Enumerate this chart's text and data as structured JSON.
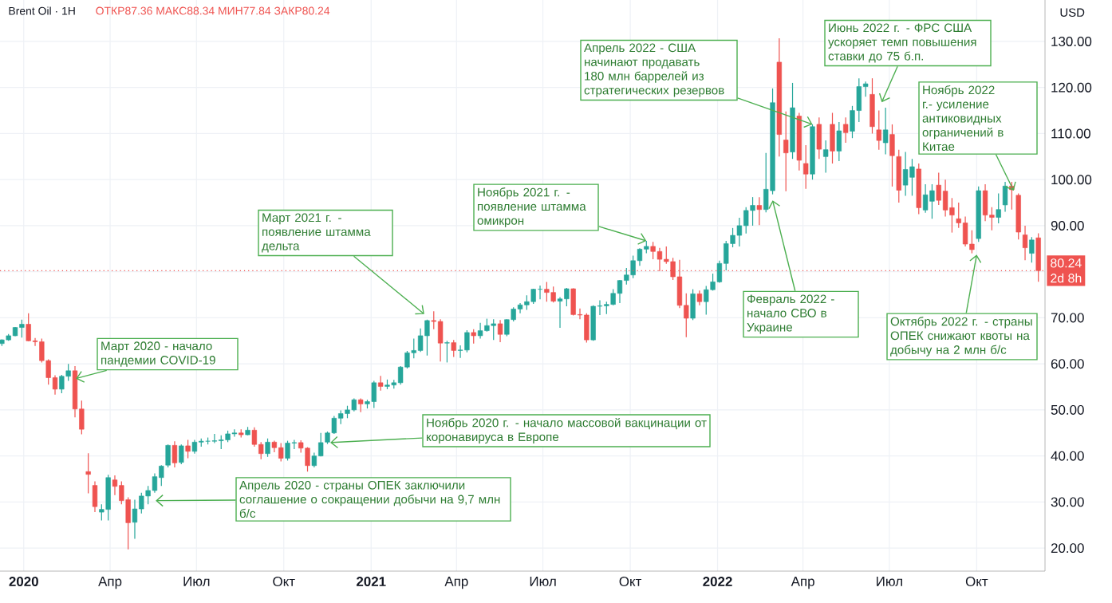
{
  "chart_data": {
    "type": "candlestick",
    "title": "Brent Oil · 1Н",
    "subtitle": "ОТКР87.36 МАКС88.34 МИН77.84 ЗАКР80.24",
    "ylabel": "USD",
    "grid": true,
    "xlim": [
      "2019-12-07",
      "2022-12-12"
    ],
    "ylim": [
      15,
      139
    ],
    "xticks": [
      {
        "value": "2020-01-01",
        "label": "2020"
      },
      {
        "value": "2020-04-01",
        "label": "Апр"
      },
      {
        "value": "2020-07-01",
        "label": "Июл"
      },
      {
        "value": "2020-10-01",
        "label": "Окт"
      },
      {
        "value": "2021-01-01",
        "label": "2021"
      },
      {
        "value": "2021-04-01",
        "label": "Апр"
      },
      {
        "value": "2021-07-01",
        "label": "Июл"
      },
      {
        "value": "2021-10-01",
        "label": "Окт"
      },
      {
        "value": "2022-01-01",
        "label": "2022"
      },
      {
        "value": "2022-04-01",
        "label": "Апр"
      },
      {
        "value": "2022-07-01",
        "label": "Июл"
      },
      {
        "value": "2022-10-01",
        "label": "Окт"
      }
    ],
    "yticks": [
      {
        "value": 20,
        "label": "20.00"
      },
      {
        "value": 30,
        "label": "30.00"
      },
      {
        "value": 40,
        "label": "40.00"
      },
      {
        "value": 50,
        "label": "50.00"
      },
      {
        "value": 60,
        "label": "60.00"
      },
      {
        "value": 70,
        "label": "70.00"
      },
      {
        "value": 80,
        "label": null
      },
      {
        "value": 90,
        "label": "90.00"
      },
      {
        "value": 100,
        "label": "100.00"
      },
      {
        "value": 110,
        "label": "110.00"
      },
      {
        "value": 120,
        "label": "120.00"
      },
      {
        "value": 130,
        "label": "130.00"
      }
    ],
    "ref_lines": [
      {
        "axis": "y",
        "value": 80.24,
        "label": "80.24",
        "color": "#ef5350",
        "line_style": "dotted"
      }
    ],
    "annotations": [
      {
        "text": "Март 2020 - начало пандемии COVID-19",
        "x": "2020-02-25",
        "y": 56.8
      },
      {
        "text": "Апрель 2020 - страны ОПЕК заключили соглашение о сокращении добычи на 9,7 млн б/с",
        "x": "2020-05-19",
        "y": 30.3
      },
      {
        "text": "Ноябрь 2020 г. - начало массовой вакцинации от коронавируса в Европе",
        "x": "2020-11-19",
        "y": 42.9
      },
      {
        "text": "Март 2021 г. - появление штамма дельта",
        "x": "2021-02-26",
        "y": 70.8
      },
      {
        "text": "Ноябрь 2021 г. - появление штамма омикрон",
        "x": "2021-10-18",
        "y": 86.7
      },
      {
        "text": "Апрель 2022 - США начинают продавать 180 млн баррелей из стратегических резервов",
        "x": "2022-04-11",
        "y": 112.0
      },
      {
        "text": "Февраль 2022 - начало СВО в Украине",
        "x": "2022-02-28",
        "y": 95.5
      },
      {
        "text": "Июнь 2022 г. - ФРС США ускоряет темп повышения ставки до 75 б.п.",
        "x": "2022-06-23",
        "y": 116.8
      },
      {
        "text": "Ноябрь 2022 г.- усиление антиковидных ограничений в Китае",
        "x": "2022-11-09",
        "y": 97.6
      },
      {
        "text": "Октябрь 2022 г. - страны ОПЕК снижают квоты на добычу на 2 млн б/с",
        "x": "2022-10-01",
        "y": 83.7
      },
      "2d 8h"
    ],
    "x": [
      "2019-12-09",
      "2019-12-16",
      "2019-12-23",
      "2019-12-30",
      "2020-01-06",
      "2020-01-13",
      "2020-01-20",
      "2020-01-27",
      "2020-02-03",
      "2020-02-10",
      "2020-02-17",
      "2020-02-24",
      "2020-03-02",
      "2020-03-09",
      "2020-03-16",
      "2020-03-23",
      "2020-03-30",
      "2020-04-06",
      "2020-04-13",
      "2020-04-20",
      "2020-04-27",
      "2020-05-04",
      "2020-05-11",
      "2020-05-18",
      "2020-05-25",
      "2020-06-01",
      "2020-06-08",
      "2020-06-15",
      "2020-06-22",
      "2020-06-29",
      "2020-07-06",
      "2020-07-13",
      "2020-07-20",
      "2020-07-27",
      "2020-08-03",
      "2020-08-10",
      "2020-08-17",
      "2020-08-24",
      "2020-08-31",
      "2020-09-07",
      "2020-09-14",
      "2020-09-21",
      "2020-09-28",
      "2020-10-05",
      "2020-10-12",
      "2020-10-19",
      "2020-10-26",
      "2020-11-02",
      "2020-11-09",
      "2020-11-16",
      "2020-11-23",
      "2020-11-30",
      "2020-12-07",
      "2020-12-14",
      "2020-12-21",
      "2020-12-28",
      "2021-01-04",
      "2021-01-11",
      "2021-01-18",
      "2021-01-25",
      "2021-02-01",
      "2021-02-08",
      "2021-02-15",
      "2021-02-22",
      "2021-03-01",
      "2021-03-08",
      "2021-03-15",
      "2021-03-22",
      "2021-03-29",
      "2021-04-05",
      "2021-04-12",
      "2021-04-19",
      "2021-04-26",
      "2021-05-03",
      "2021-05-10",
      "2021-05-17",
      "2021-05-24",
      "2021-05-31",
      "2021-06-07",
      "2021-06-14",
      "2021-06-21",
      "2021-06-28",
      "2021-07-05",
      "2021-07-12",
      "2021-07-19",
      "2021-07-26",
      "2021-08-02",
      "2021-08-09",
      "2021-08-16",
      "2021-08-23",
      "2021-08-30",
      "2021-09-06",
      "2021-09-13",
      "2021-09-20",
      "2021-09-27",
      "2021-10-04",
      "2021-10-11",
      "2021-10-18",
      "2021-10-25",
      "2021-11-01",
      "2021-11-08",
      "2021-11-15",
      "2021-11-22",
      "2021-11-29",
      "2021-12-06",
      "2021-12-13",
      "2021-12-20",
      "2021-12-27",
      "2022-01-03",
      "2022-01-10",
      "2022-01-17",
      "2022-01-24",
      "2022-01-31",
      "2022-02-07",
      "2022-02-14",
      "2022-02-21",
      "2022-02-28",
      "2022-03-07",
      "2022-03-14",
      "2022-03-21",
      "2022-03-28",
      "2022-04-04",
      "2022-04-11",
      "2022-04-18",
      "2022-04-25",
      "2022-05-02",
      "2022-05-09",
      "2022-05-16",
      "2022-05-23",
      "2022-05-30",
      "2022-06-06",
      "2022-06-13",
      "2022-06-20",
      "2022-06-27",
      "2022-07-04",
      "2022-07-11",
      "2022-07-18",
      "2022-07-25",
      "2022-08-01",
      "2022-08-08",
      "2022-08-15",
      "2022-08-22",
      "2022-08-29",
      "2022-09-05",
      "2022-09-12",
      "2022-09-19",
      "2022-09-26",
      "2022-10-03",
      "2022-10-10",
      "2022-10-17",
      "2022-10-24",
      "2022-10-31",
      "2022-11-07",
      "2022-11-14",
      "2022-11-21",
      "2022-11-28",
      "2022-12-05"
    ],
    "ohlc": [
      [
        64.4,
        65.3,
        63.9,
        65.2
      ],
      [
        65.2,
        66.5,
        65.0,
        66.1
      ],
      [
        66.1,
        68.0,
        66.0,
        67.9
      ],
      [
        67.9,
        69.6,
        65.7,
        68.6
      ],
      [
        68.6,
        71.0,
        64.9,
        65.0
      ],
      [
        65.0,
        65.6,
        63.9,
        64.8
      ],
      [
        64.8,
        65.5,
        60.3,
        60.7
      ],
      [
        60.7,
        61.0,
        55.5,
        57.0
      ],
      [
        57.0,
        57.5,
        53.3,
        54.5
      ],
      [
        54.5,
        57.6,
        53.6,
        57.3
      ],
      [
        57.3,
        60.0,
        56.3,
        58.5
      ],
      [
        58.5,
        59.5,
        48.4,
        50.2
      ],
      [
        50.2,
        52.0,
        44.7,
        45.8
      ],
      [
        36.6,
        40.6,
        31.9,
        36.0
      ],
      [
        33.6,
        34.5,
        27.8,
        29.0
      ],
      [
        27.8,
        29.5,
        26.0,
        28.4
      ],
      [
        28.4,
        35.9,
        26.0,
        35.3
      ],
      [
        34.8,
        35.8,
        31.5,
        33.4
      ],
      [
        33.6,
        34.5,
        29.5,
        30.3
      ],
      [
        30.5,
        31.0,
        19.7,
        25.5
      ],
      [
        25.6,
        30.5,
        22.0,
        28.5
      ],
      [
        28.5,
        32.0,
        27.5,
        31.3
      ],
      [
        31.3,
        33.5,
        29.5,
        32.5
      ],
      [
        32.5,
        36.2,
        32.0,
        35.5
      ],
      [
        35.3,
        38.0,
        33.5,
        37.8
      ],
      [
        38.0,
        42.5,
        37.5,
        42.3
      ],
      [
        42.3,
        43.2,
        37.5,
        38.5
      ],
      [
        38.6,
        42.5,
        38.2,
        42.2
      ],
      [
        42.2,
        43.5,
        39.5,
        41.0
      ],
      [
        41.0,
        43.5,
        40.5,
        43.0
      ],
      [
        43.0,
        43.8,
        42.0,
        43.2
      ],
      [
        43.2,
        44.0,
        42.5,
        43.2
      ],
      [
        43.2,
        44.8,
        42.8,
        43.3
      ],
      [
        43.3,
        44.5,
        41.5,
        43.5
      ],
      [
        43.5,
        45.5,
        43.0,
        44.8
      ],
      [
        44.8,
        45.8,
        44.2,
        45.0
      ],
      [
        45.0,
        45.8,
        44.0,
        44.6
      ],
      [
        44.6,
        46.3,
        44.5,
        45.6
      ],
      [
        45.6,
        46.2,
        42.0,
        42.5
      ],
      [
        42.5,
        43.0,
        39.3,
        40.5
      ],
      [
        40.5,
        43.8,
        39.8,
        43.0
      ],
      [
        43.0,
        43.3,
        40.8,
        41.8
      ],
      [
        41.8,
        42.8,
        38.8,
        39.5
      ],
      [
        39.5,
        43.3,
        39.0,
        42.8
      ],
      [
        42.8,
        43.5,
        41.5,
        42.9
      ],
      [
        42.9,
        43.4,
        40.7,
        41.7
      ],
      [
        41.7,
        41.9,
        36.6,
        37.9
      ],
      [
        37.9,
        40.7,
        37.5,
        40.0
      ],
      [
        40.0,
        45.0,
        39.9,
        42.9
      ],
      [
        43.0,
        45.3,
        42.6,
        45.0
      ],
      [
        45.0,
        48.7,
        44.8,
        48.2
      ],
      [
        48.2,
        49.9,
        46.9,
        49.2
      ],
      [
        49.2,
        50.9,
        48.2,
        50.0
      ],
      [
        50.0,
        52.5,
        49.7,
        52.2
      ],
      [
        52.2,
        52.5,
        49.5,
        51.3
      ],
      [
        51.3,
        52.2,
        50.3,
        51.8
      ],
      [
        51.8,
        56.3,
        50.4,
        55.9
      ],
      [
        55.9,
        57.4,
        54.2,
        55.1
      ],
      [
        55.1,
        56.6,
        54.5,
        55.4
      ],
      [
        55.4,
        56.5,
        54.6,
        55.9
      ],
      [
        55.9,
        59.5,
        55.5,
        59.3
      ],
      [
        59.3,
        62.8,
        59.0,
        62.4
      ],
      [
        62.4,
        65.5,
        61.2,
        62.9
      ],
      [
        62.9,
        67.7,
        62.6,
        66.1
      ],
      [
        66.1,
        69.6,
        61.8,
        69.4
      ],
      [
        69.4,
        71.4,
        67.5,
        69.2
      ],
      [
        69.2,
        69.7,
        60.5,
        64.5
      ],
      [
        64.5,
        65.0,
        60.3,
        64.6
      ],
      [
        64.6,
        65.2,
        61.5,
        62.9
      ],
      [
        62.9,
        64.0,
        61.3,
        63.0
      ],
      [
        63.0,
        67.3,
        62.5,
        66.8
      ],
      [
        66.8,
        67.5,
        64.4,
        66.1
      ],
      [
        66.1,
        68.9,
        65.5,
        67.2
      ],
      [
        67.2,
        69.8,
        67.0,
        68.3
      ],
      [
        68.3,
        69.7,
        65.2,
        68.7
      ],
      [
        68.7,
        69.5,
        64.7,
        66.4
      ],
      [
        66.4,
        69.7,
        66.0,
        69.6
      ],
      [
        69.6,
        72.3,
        69.2,
        71.9
      ],
      [
        71.9,
        73.2,
        71.0,
        72.8
      ],
      [
        72.8,
        74.9,
        71.7,
        73.5
      ],
      [
        73.5,
        76.3,
        73.0,
        76.2
      ],
      [
        76.2,
        77.0,
        74.0,
        76.2
      ],
      [
        76.2,
        77.8,
        73.5,
        75.5
      ],
      [
        75.5,
        76.8,
        73.3,
        73.6
      ],
      [
        73.6,
        74.5,
        67.8,
        74.1
      ],
      [
        74.1,
        76.5,
        72.5,
        76.3
      ],
      [
        76.3,
        76.4,
        70.5,
        70.7
      ],
      [
        70.7,
        72.0,
        69.7,
        70.6
      ],
      [
        70.6,
        71.0,
        64.6,
        65.2
      ],
      [
        65.2,
        72.7,
        65.0,
        72.5
      ],
      [
        72.5,
        73.8,
        70.6,
        72.6
      ],
      [
        72.6,
        73.5,
        70.8,
        72.9
      ],
      [
        72.9,
        76.2,
        72.7,
        75.3
      ],
      [
        75.3,
        78.2,
        73.2,
        78.1
      ],
      [
        78.1,
        80.8,
        77.2,
        79.3
      ],
      [
        79.3,
        83.5,
        78.6,
        82.4
      ],
      [
        82.4,
        85.1,
        81.3,
        84.9
      ],
      [
        84.9,
        86.7,
        84.0,
        85.5
      ],
      [
        85.5,
        86.5,
        82.7,
        84.4
      ],
      [
        84.4,
        85.2,
        80.1,
        82.7
      ],
      [
        82.7,
        85.5,
        81.7,
        82.2
      ],
      [
        82.2,
        83.0,
        78.2,
        78.9
      ],
      [
        78.9,
        82.6,
        72.1,
        72.7
      ],
      [
        72.7,
        75.3,
        65.8,
        69.9
      ],
      [
        69.9,
        76.2,
        69.5,
        75.2
      ],
      [
        75.2,
        75.9,
        72.7,
        73.5
      ],
      [
        73.5,
        76.9,
        70.7,
        76.1
      ],
      [
        76.1,
        79.6,
        75.9,
        77.8
      ],
      [
        77.8,
        82.4,
        77.6,
        81.8
      ],
      [
        81.8,
        86.7,
        80.3,
        86.1
      ],
      [
        86.1,
        89.5,
        85.3,
        87.9
      ],
      [
        87.9,
        91.7,
        85.5,
        90.0
      ],
      [
        90.0,
        94.0,
        88.3,
        93.3
      ],
      [
        93.3,
        96.2,
        90.0,
        94.4
      ],
      [
        94.4,
        96.2,
        90.1,
        93.5
      ],
      [
        93.5,
        105.8,
        92.9,
        97.9
      ],
      [
        97.6,
        119.8,
        96.8,
        116.7
      ],
      [
        125.5,
        130.7,
        105.0,
        109.8
      ],
      [
        108.6,
        114.8,
        97.5,
        105.8
      ],
      [
        106.0,
        121.0,
        104.5,
        115.6
      ],
      [
        113.8,
        114.5,
        102.0,
        104.2
      ],
      [
        103.5,
        107.5,
        98.0,
        101.2
      ],
      [
        101.2,
        112.0,
        100.0,
        111.5
      ],
      [
        112.0,
        113.5,
        104.5,
        106.6
      ],
      [
        105.0,
        108.5,
        101.5,
        106.5
      ],
      [
        112.0,
        114.5,
        103.5,
        106.2
      ],
      [
        106.2,
        112.5,
        104.0,
        110.6
      ],
      [
        112.0,
        113.5,
        108.0,
        110.2
      ],
      [
        110.5,
        116.0,
        109.0,
        115.0
      ],
      [
        115.0,
        122.0,
        112.5,
        120.2
      ],
      [
        120.2,
        121.3,
        118.0,
        120.8
      ],
      [
        118.5,
        122.0,
        110.0,
        111.5
      ],
      [
        110.8,
        115.0,
        106.5,
        108.5
      ],
      [
        108.0,
        115.6,
        105.5,
        110.8
      ],
      [
        109.8,
        112.0,
        98.5,
        105.2
      ],
      [
        105.0,
        106.5,
        95.0,
        97.7
      ],
      [
        98.8,
        106.0,
        96.5,
        102.2
      ],
      [
        100.5,
        104.5,
        96.5,
        102.8
      ],
      [
        102.3,
        103.5,
        92.5,
        93.9
      ],
      [
        93.4,
        99.0,
        92.8,
        96.7
      ],
      [
        95.3,
        99.0,
        91.5,
        97.6
      ],
      [
        98.8,
        101.5,
        94.5,
        95.5
      ],
      [
        97.5,
        100.0,
        92.0,
        93.4
      ],
      [
        93.9,
        96.0,
        88.5,
        92.3
      ],
      [
        91.5,
        95.0,
        89.5,
        90.6
      ],
      [
        90.6,
        92.0,
        85.5,
        86.0
      ],
      [
        86.0,
        89.0,
        84.0,
        84.8
      ],
      [
        87.2,
        98.5,
        86.5,
        97.6
      ],
      [
        97.6,
        99.0,
        91.0,
        92.3
      ],
      [
        92.3,
        94.0,
        89.0,
        91.8
      ],
      [
        91.8,
        97.0,
        90.5,
        93.5
      ],
      [
        94.5,
        99.5,
        93.0,
        98.6
      ],
      [
        98.6,
        99.5,
        93.5,
        97.8
      ],
      [
        96.6,
        97.0,
        87.0,
        88.6
      ],
      [
        88.0,
        90.0,
        82.5,
        85.2
      ],
      [
        84.0,
        87.5,
        82.0,
        86.9
      ],
      [
        87.36,
        88.34,
        77.84,
        80.24
      ]
    ]
  }
}
